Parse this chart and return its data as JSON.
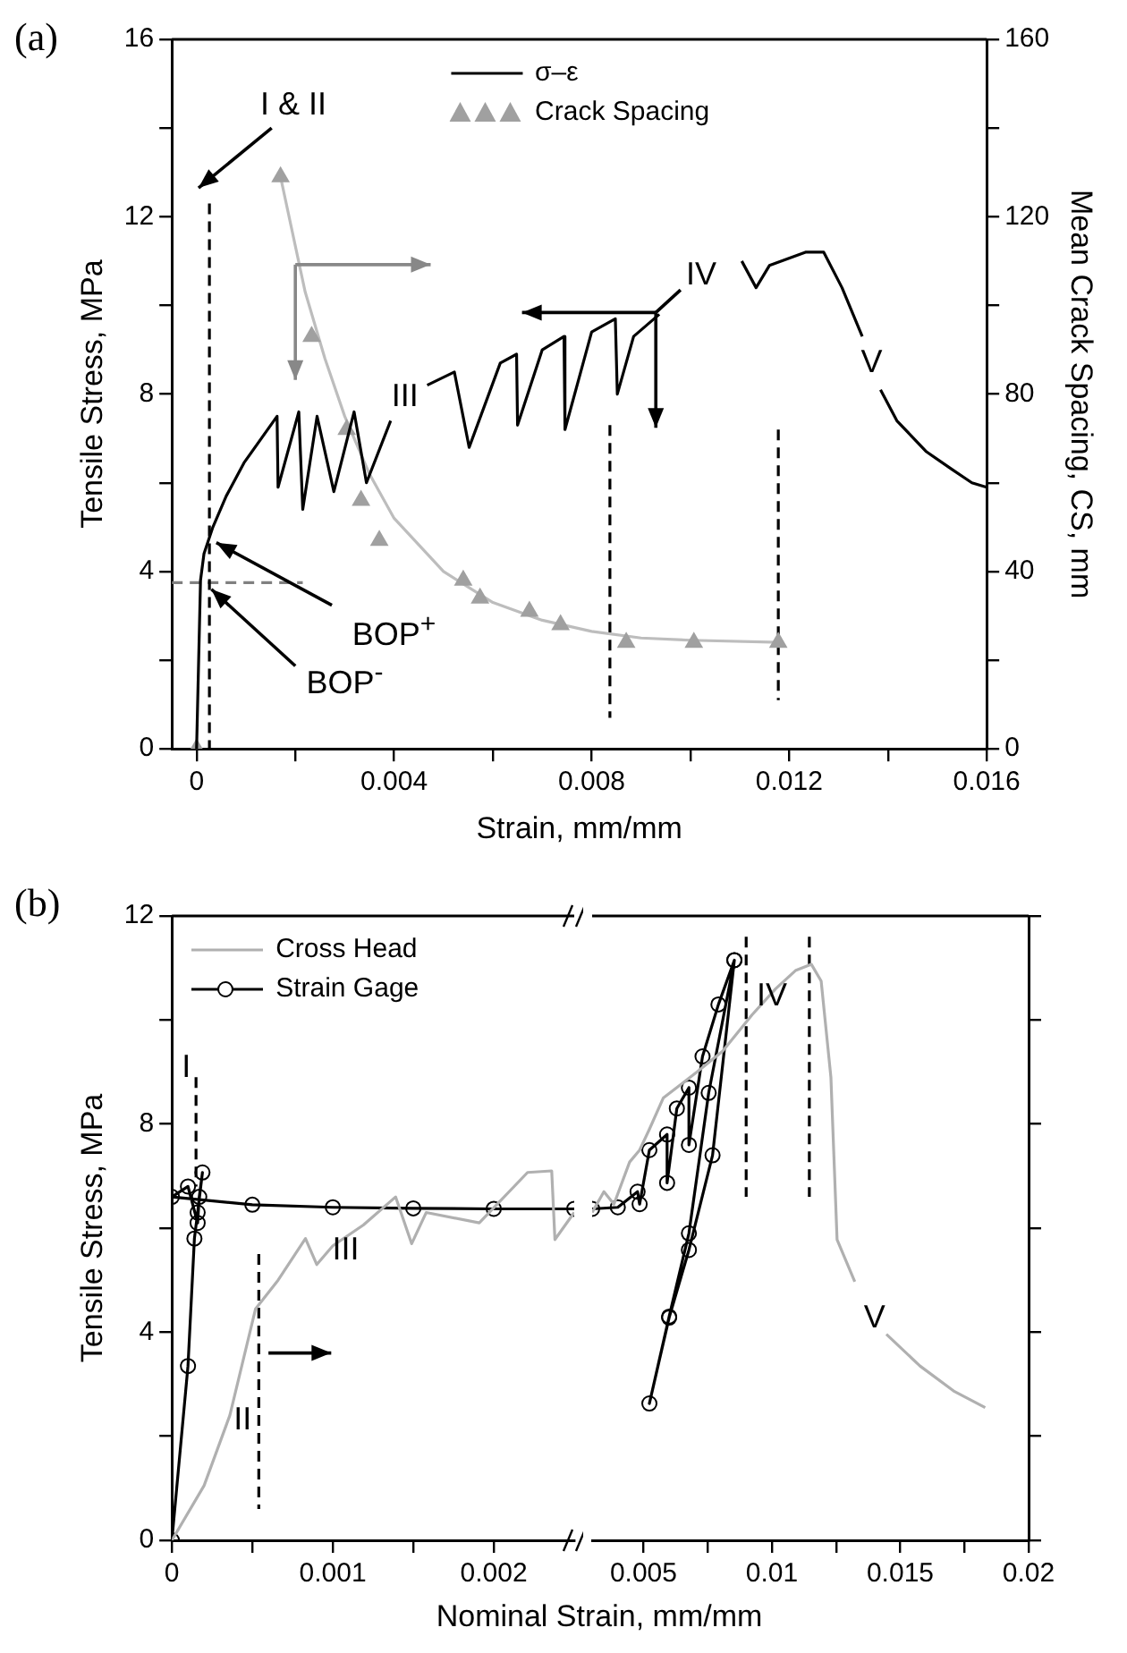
{
  "chart_data": [
    {
      "type": "line",
      "xlabel": "Strain, mm/mm",
      "ylabel": "Tensile Stress, MPa",
      "y2label": "Mean Crack Spacing, CS, mm",
      "legend": "top",
      "grid": false,
      "xlim": [
        -0.0005,
        0.016
      ],
      "xticks": [
        0,
        {
          "value": 0.002,
          "label": null
        },
        0.004,
        {
          "value": 0.006,
          "label": null
        },
        0.008,
        {
          "value": 0.01,
          "label": null
        },
        0.012,
        {
          "value": 0.014,
          "label": null
        },
        0.016
      ],
      "ylim": [
        0,
        16
      ],
      "yticks": [
        0,
        {
          "value": 2,
          "label": null
        },
        4,
        {
          "value": 6,
          "label": null
        },
        8,
        {
          "value": 10,
          "label": null
        },
        12,
        {
          "value": 14,
          "label": null
        },
        16
      ],
      "y2lim": [
        0,
        160
      ],
      "y2ticks": [
        0,
        {
          "value": 20,
          "label": null
        },
        40,
        {
          "value": 60,
          "label": null
        },
        80,
        {
          "value": 100,
          "label": null
        },
        120,
        {
          "value": 140,
          "label": null
        },
        160
      ],
      "annotations": [
        "(a)",
        "I & II",
        "III",
        "IV",
        "V",
        {
          "text": "BOP$^{+}$",
          "x": 0.0004,
          "y": 4.65
        },
        {
          "text": "BOP$^{-}$",
          "x": 0.0003,
          "y": 3.6
        }
      ],
      "series": [
        {
          "name": "σ–ε",
          "color": "#000000",
          "marker": "none",
          "x": [
            0,
            8e-05,
            0.00015,
            0.00033,
            0.0006,
            0.00096,
            0.00163,
            0.00165,
            0.00207,
            0.00215,
            0.00244,
            0.00278,
            0.00319,
            0.00344,
            0.00393,
            0.0043,
            0.00467,
            0.00522,
            0.00552,
            0.00615,
            0.00648,
            0.0065,
            0.007,
            0.00744,
            0.00746,
            0.008,
            0.00848,
            0.00852,
            0.00885,
            0.00937,
            0.0102,
            0.01104,
            0.01133,
            0.0116,
            0.01233,
            0.0127,
            0.01307,
            0.01348,
            0.01367,
            0.01385,
            0.01418,
            0.01478,
            0.0153,
            0.0157,
            0.016
          ],
          "values": [
            0,
            3.8,
            4.4,
            5.0,
            5.7,
            6.45,
            7.5,
            5.9,
            7.6,
            5.4,
            7.5,
            5.8,
            7.6,
            6.0,
            7.4,
            null,
            8.2,
            8.5,
            6.8,
            8.7,
            8.9,
            7.3,
            9.0,
            9.3,
            7.2,
            9.4,
            9.7,
            8.0,
            9.3,
            9.8,
            null,
            11.0,
            10.4,
            10.9,
            11.2,
            11.2,
            10.4,
            9.3,
            null,
            8.1,
            7.4,
            6.7,
            6.3,
            6.0,
            5.9
          ]
        },
        {
          "name": "Crack Spacing",
          "type": "scatter",
          "color": "#a0a0a0",
          "marker": "triangle",
          "axis": "y2",
          "x": [
            0,
            0.0017,
            0.00233,
            0.00304,
            0.00333,
            0.0037,
            0.0054,
            0.00574,
            0.00674,
            0.00737,
            0.0087,
            0.01007,
            0.01178
          ],
          "values": [
            0,
            129,
            93,
            72,
            56,
            47,
            38,
            34,
            31,
            28,
            24,
            24,
            24
          ]
        },
        {
          "color": "#bdbdbd",
          "marker": "none",
          "axis": "y2",
          "x": [
            0.0017,
            0.0022,
            0.0026,
            0.003,
            0.0035,
            0.004,
            0.005,
            0.006,
            0.007,
            0.008,
            0.009,
            0.01,
            0.0118
          ],
          "values": [
            129,
            103,
            88,
            75,
            62,
            52,
            40,
            33,
            29,
            26.5,
            25,
            24.5,
            24
          ]
        },
        {
          "color": "#000000",
          "marker": "none",
          "line_style": "dashed",
          "x": [
            0.00026,
            0.00026
          ],
          "values": [
            12.3,
            0
          ]
        },
        {
          "color": "#000000",
          "marker": "none",
          "line_style": "dashed",
          "x": [
            0.00837,
            0.00837
          ],
          "values": [
            7.3,
            0.7
          ]
        },
        {
          "color": "#000000",
          "marker": "none",
          "line_style": "dashed",
          "x": [
            0.01178,
            0.01178
          ],
          "values": [
            7.2,
            1.1
          ]
        },
        {
          "color": "#808080",
          "marker": "none",
          "line_style": "dashed",
          "x": [
            -0.0005,
            0.00215
          ],
          "values": [
            3.75,
            3.75
          ]
        }
      ]
    },
    {
      "type": "line",
      "ylabel": "Tensile Stress, MPa",
      "legend": "top left",
      "grid": false,
      "xlim": [
        0,
        0.0025
      ],
      "xticks": [
        0,
        {
          "value": 0.0005,
          "label": null
        },
        0.001,
        {
          "value": 0.0015,
          "label": null
        },
        0.002
      ],
      "ylim": [
        0,
        12
      ],
      "yticks": [
        0,
        {
          "value": 2,
          "label": null
        },
        4,
        {
          "value": 6,
          "label": null
        },
        8,
        {
          "value": 10,
          "label": null
        },
        12
      ],
      "annotations": [
        "(b)",
        "I",
        "II",
        "III"
      ],
      "series": [
        {
          "name": "Cross Head",
          "color": "#b0b0b0",
          "marker": "none",
          "x": [
            0,
            0.0002,
            0.00036,
            0.00052,
            0.00066,
            0.00083,
            0.0009,
            0.001,
            0.00119,
            0.00139,
            0.00149,
            0.00158,
            0.00191,
            0.00221,
            0.00236,
            0.00238,
            0.0025
          ],
          "values": [
            0,
            1.05,
            2.4,
            4.45,
            5.0,
            5.8,
            5.3,
            5.66,
            6.06,
            6.6,
            5.7,
            6.3,
            6.1,
            7.07,
            7.1,
            5.78,
            6.3
          ]
        },
        {
          "name": "Strain Gage",
          "color": "#000000",
          "marker": "circle",
          "x": [
            0,
            0.0001,
            0.00014,
            0.00016,
            0.00019,
            0.00017,
            0.00016,
            0.0001,
            0,
            0.0005,
            0.001,
            0.0015,
            0.002,
            0.0025
          ],
          "values": [
            0,
            3.35,
            5.8,
            6.3,
            7.07,
            6.6,
            6.1,
            6.8,
            6.6,
            6.45,
            6.4,
            6.38,
            6.37,
            6.37
          ]
        },
        {
          "color": "#000000",
          "marker": "none",
          "line_style": "dashed",
          "x": [
            0.00015,
            0.00015
          ],
          "values": [
            8.9,
            6.8
          ]
        },
        {
          "color": "#000000",
          "marker": "none",
          "line_style": "dashed",
          "x": [
            0.00054,
            0.00054
          ],
          "values": [
            5.5,
            0.6
          ]
        }
      ]
    },
    {
      "type": "line",
      "xlabel": "Nominal Strain, mm/mm",
      "grid": false,
      "tick_labels": "x",
      "xlim": [
        0.003,
        0.02
      ],
      "xticks": [
        0.005,
        {
          "value": 0.0075,
          "label": null
        },
        0.01,
        {
          "value": 0.0125,
          "label": null
        },
        0.015,
        {
          "value": 0.0175,
          "label": null
        },
        0.02
      ],
      "ylim": [
        0,
        12
      ],
      "yticks": [
        0,
        {
          "value": 2,
          "label": null
        },
        4,
        {
          "value": 6,
          "label": null
        },
        8,
        {
          "value": 10,
          "label": null
        },
        12
      ],
      "annotations": [
        "IV",
        "V"
      ],
      "series": [
        {
          "color": "#b0b0b0",
          "marker": "none",
          "x": [
            0.003,
            0.00346,
            0.00385,
            0.00446,
            0.00485,
            0.00523,
            0.00577,
            0.00708,
            0.00808,
            0.00923,
            0.01015,
            0.01092,
            0.01154,
            0.01192,
            0.0123,
            0.01254,
            0.01323,
            0.0138,
            0.01446,
            0.01577,
            0.01708,
            0.01831
          ],
          "values": [
            6.3,
            6.7,
            6.46,
            7.27,
            7.5,
            7.9,
            8.5,
            9.0,
            9.4,
            10.1,
            10.6,
            10.95,
            11.07,
            10.75,
            8.9,
            5.78,
            4.97,
            null,
            3.96,
            3.35,
            2.87,
            2.55
          ]
        },
        {
          "color": "#000000",
          "marker": "circle",
          "x": [
            0.003,
            0.004,
            0.00477,
            0.00485,
            0.00523,
            0.00592,
            0.00592,
            0.0063,
            0.00677,
            0.00677,
            0.0073,
            0.00792,
            0.00854,
            0.00769,
            0.00677,
            0.006,
            0.00523,
            0.006,
            0.00677,
            0.00754,
            0.00854
          ],
          "values": [
            6.37,
            6.4,
            6.7,
            6.46,
            7.5,
            7.8,
            6.87,
            8.3,
            8.7,
            7.6,
            9.3,
            10.3,
            11.15,
            7.4,
            5.58,
            4.28,
            2.63,
            4.3,
            5.9,
            8.6,
            11.15
          ]
        },
        {
          "color": "#000000",
          "marker": "none",
          "line_style": "dashed",
          "x": [
            0.009,
            0.009
          ],
          "values": [
            11.6,
            6.6
          ]
        },
        {
          "color": "#000000",
          "marker": "none",
          "line_style": "dashed",
          "x": [
            0.01146,
            0.01146
          ],
          "values": [
            11.6,
            6.6
          ]
        }
      ]
    }
  ]
}
